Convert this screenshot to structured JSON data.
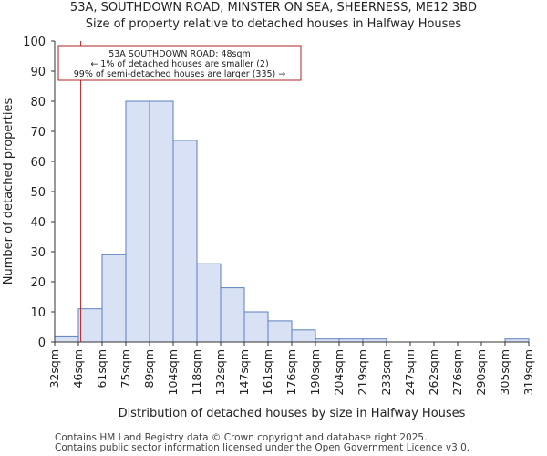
{
  "chart_data": {
    "type": "bar",
    "title": "53A, SOUTHDOWN ROAD, MINSTER ON SEA, SHEERNESS, ME12 3BD",
    "subtitle": "Size of property relative to detached houses in Halfway Houses",
    "xlabel": "Distribution of detached houses by size in Halfway Houses",
    "ylabel": "Number of detached properties",
    "ylim": [
      0,
      100
    ],
    "yticks": [
      0,
      10,
      20,
      30,
      40,
      50,
      60,
      70,
      80,
      90,
      100
    ],
    "tick_labels": [
      "32sqm",
      "46sqm",
      "61sqm",
      "75sqm",
      "89sqm",
      "104sqm",
      "118sqm",
      "132sqm",
      "147sqm",
      "161sqm",
      "176sqm",
      "190sqm",
      "204sqm",
      "219sqm",
      "233sqm",
      "247sqm",
      "262sqm",
      "276sqm",
      "290sqm",
      "305sqm",
      "319sqm"
    ],
    "bins": [
      {
        "label": "32–46sqm",
        "value": 2
      },
      {
        "label": "46–61sqm",
        "value": 11
      },
      {
        "label": "61–75sqm",
        "value": 29
      },
      {
        "label": "75–89sqm",
        "value": 80
      },
      {
        "label": "89–104sqm",
        "value": 80
      },
      {
        "label": "104–118sqm",
        "value": 67
      },
      {
        "label": "118–132sqm",
        "value": 26
      },
      {
        "label": "132–147sqm",
        "value": 18
      },
      {
        "label": "147–161sqm",
        "value": 10
      },
      {
        "label": "161–176sqm",
        "value": 7
      },
      {
        "label": "176–190sqm",
        "value": 4
      },
      {
        "label": "190–204sqm",
        "value": 1
      },
      {
        "label": "204–219sqm",
        "value": 1
      },
      {
        "label": "219–233sqm",
        "value": 1
      },
      {
        "label": "233–247sqm",
        "value": 0
      },
      {
        "label": "247–262sqm",
        "value": 0
      },
      {
        "label": "262–276sqm",
        "value": 0
      },
      {
        "label": "276–290sqm",
        "value": 0
      },
      {
        "label": "290–305sqm",
        "value": 0
      },
      {
        "label": "305–319sqm",
        "value": 1
      }
    ],
    "marker": {
      "value_bin_position": 1.1,
      "value_label": "48sqm",
      "color": "#b22222"
    },
    "annotation": {
      "lines": [
        "53A SOUTHDOWN ROAD: 48sqm",
        "← 1% of detached houses are smaller (2)",
        "99% of semi-detached houses are larger (335) →"
      ],
      "border_color": "#b22222"
    },
    "bar_fill": "#d9e2f4",
    "bar_stroke": "#5b7fbf",
    "grid": false
  },
  "footer": {
    "line1": "Contains HM Land Registry data © Crown copyright and database right 2025.",
    "line2": "Contains public sector information licensed under the Open Government Licence v3.0."
  }
}
